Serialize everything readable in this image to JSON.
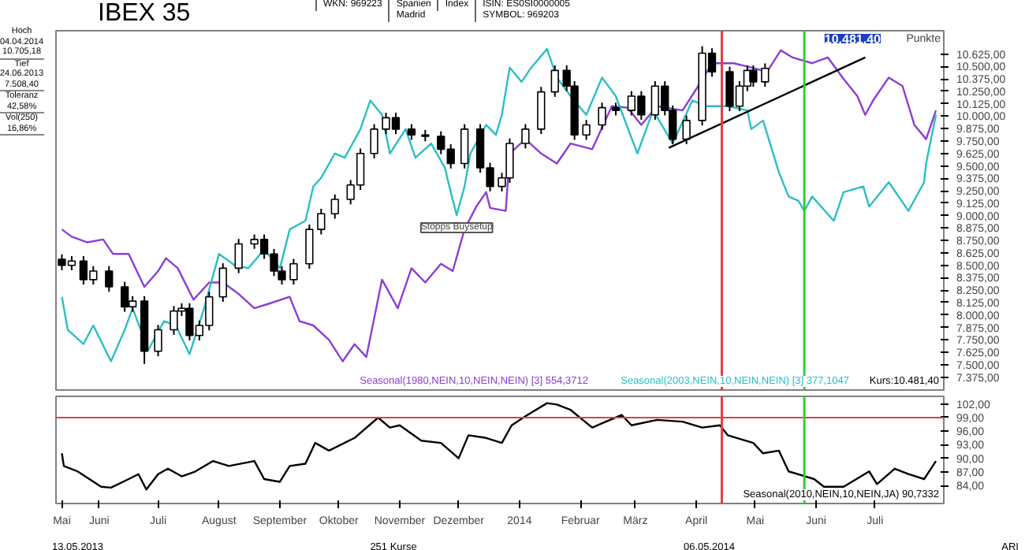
{
  "chart_data": [
    {
      "type": "candlestick",
      "title": "IBEX 35",
      "ylabel": "Punkte",
      "annotations": [
        "WKN: 969223",
        "Spanien\nMadrid",
        "Index",
        "ISIN: ES0SI0000005\nSYMBOL: 969203",
        "Hoch\n04.04.2014\n10.705,18",
        "Tief\n24.06.2013\n7.508,40",
        "Toleranz\n42,58%",
        "Vol(250)\n16,86%",
        {
          "text": "Stopps Buysetup",
          "x": "2013-11-30",
          "y": 9005
        },
        "10.481,40"
      ],
      "xlim": [
        "2013-05-10",
        "2014-08-05"
      ],
      "ylim": [
        7245,
        10860
      ],
      "yticks": [
        {
          "value": 7375,
          "label": "7.375,00"
        },
        {
          "value": 7500,
          "label": "7.500,00"
        },
        {
          "value": 7625,
          "label": "7.625,00"
        },
        {
          "value": 7750,
          "label": "7.750,00"
        },
        {
          "value": 7875,
          "label": "7.875,00"
        },
        {
          "value": 8000,
          "label": "8.000,00"
        },
        {
          "value": 8125,
          "label": "8.125,00"
        },
        {
          "value": 8250,
          "label": "8.250,00"
        },
        {
          "value": 8375,
          "label": "8.375,00"
        },
        {
          "value": 8500,
          "label": "8.500,00"
        },
        {
          "value": 8625,
          "label": "8.625,00"
        },
        {
          "value": 8750,
          "label": "8.750,00"
        },
        {
          "value": 8875,
          "label": "8.875,00"
        },
        {
          "value": 9000,
          "label": "9.000,00"
        },
        {
          "value": 9125,
          "label": "9.125,00"
        },
        {
          "value": 9250,
          "label": "9.250,00"
        },
        {
          "value": 9375,
          "label": "9.375,00"
        },
        {
          "value": 9500,
          "label": "9.500,00"
        },
        {
          "value": 9625,
          "label": "9.625,00"
        },
        {
          "value": 9750,
          "label": "9.750,00"
        },
        {
          "value": 9875,
          "label": "9.875,00"
        },
        {
          "value": 10000,
          "label": "10.000,00"
        },
        {
          "value": 10125,
          "label": "10.125,00"
        },
        {
          "value": 10250,
          "label": "10.250,00"
        },
        {
          "value": 10375,
          "label": "10.375,00"
        },
        {
          "value": 10500,
          "label": "10.500,00"
        },
        {
          "value": 10625,
          "label": "10.625,00"
        }
      ],
      "tick_labels": "y",
      "ref_lines": [
        {
          "axis": "x",
          "value": "2014-04-14",
          "color": "#e04040"
        },
        {
          "axis": "x",
          "value": "2014-05-26",
          "color": "#33cc33"
        }
      ],
      "series": [
        {
          "type": "line",
          "name": "Seasonal(1980,NEIN,10,NEIN,NEIN) [3] 554,3712",
          "color": "#8a3fd6",
          "x": [
            "2013-05-13",
            "2013-05-18",
            "2013-05-26",
            "2013-06-03",
            "2013-06-08",
            "2013-06-16",
            "2013-06-24",
            "2013-07-01",
            "2013-07-05",
            "2013-07-11",
            "2013-07-19",
            "2013-07-27",
            "2013-08-03",
            "2013-08-11",
            "2013-08-19",
            "2013-08-26",
            "2013-09-06",
            "2013-09-11",
            "2013-09-18",
            "2013-09-26",
            "2013-10-03",
            "2013-10-09",
            "2013-10-15",
            "2013-10-23",
            "2013-10-31",
            "2013-11-07",
            "2013-11-14",
            "2013-11-22",
            "2013-11-28",
            "2013-12-04",
            "2013-12-10",
            "2013-12-15",
            "2013-12-17",
            "2013-12-25",
            "2013-12-27",
            "2014-01-04",
            "2014-01-12",
            "2014-01-20",
            "2014-01-27",
            "2014-02-07",
            "2014-02-17",
            "2014-02-25",
            "2014-03-04",
            "2014-03-12",
            "2014-03-25",
            "2014-04-02",
            "2014-04-09",
            "2014-04-20",
            "2014-04-29",
            "2014-05-07",
            "2014-05-14",
            "2014-05-20",
            "2014-05-30",
            "2014-06-07",
            "2014-06-15",
            "2014-06-22",
            "2014-06-26",
            "2014-06-30",
            "2014-07-08",
            "2014-07-15",
            "2014-07-21",
            "2014-07-27",
            "2014-08-01"
          ],
          "values": [
            8861,
            8788,
            8731,
            8760,
            8615,
            8615,
            8284,
            8442,
            8572,
            8471,
            8154,
            8327,
            8327,
            8212,
            8068,
            8111,
            8183,
            7938,
            7895,
            7750,
            7534,
            7707,
            7577,
            8356,
            8068,
            8471,
            8327,
            8515,
            8442,
            8861,
            9091,
            9236,
            9077,
            9048,
            9625,
            9769,
            9625,
            9524,
            9726,
            9668,
            10101,
            10086,
            9913,
            10101,
            10058,
            10303,
            10533,
            10533,
            10490,
            10447,
            10663,
            10591,
            10533,
            10591,
            10375,
            10202,
            10014,
            10158,
            10389,
            10303,
            9913,
            9769,
            10058
          ]
        },
        {
          "type": "line",
          "name": "Seasonal(2003,NEIN,10,NEIN,NEIN) [3] 377,1047",
          "color": "#2bbfc4",
          "x": [
            "2013-05-13",
            "2013-05-16",
            "2013-05-24",
            "2013-05-29",
            "2013-06-07",
            "2013-06-14",
            "2013-06-18",
            "2013-06-26",
            "2013-07-04",
            "2013-07-10",
            "2013-07-17",
            "2013-07-24",
            "2013-08-01",
            "2013-08-09",
            "2013-08-16",
            "2013-08-24",
            "2013-09-01",
            "2013-09-06",
            "2013-09-14",
            "2013-09-18",
            "2013-09-22",
            "2013-09-29",
            "2013-10-04",
            "2013-10-12",
            "2013-10-17",
            "2013-10-23",
            "2013-10-27",
            "2013-11-04",
            "2013-11-09",
            "2013-11-17",
            "2013-11-24",
            "2013-11-27",
            "2013-11-30",
            "2013-12-04",
            "2013-12-07",
            "2013-12-15",
            "2013-12-20",
            "2013-12-23",
            "2013-12-27",
            "2014-01-02",
            "2014-01-07",
            "2014-01-15",
            "2014-01-20",
            "2014-01-27",
            "2014-02-04",
            "2014-02-12",
            "2014-02-19",
            "2014-03-02",
            "2014-03-10",
            "2014-03-20",
            "2014-03-30",
            "2014-04-06",
            "2014-04-17",
            "2014-04-27",
            "2014-04-29",
            "2014-05-05",
            "2014-05-13",
            "2014-05-18",
            "2014-05-23",
            "2014-05-26",
            "2014-05-30",
            "2014-06-10",
            "2014-06-15",
            "2014-06-25",
            "2014-06-28",
            "2014-07-08",
            "2014-07-18",
            "2014-07-26",
            "2014-07-27",
            "2014-08-01"
          ],
          "values": [
            8183,
            7851,
            7707,
            7895,
            7534,
            7851,
            8068,
            7649,
            7938,
            7895,
            7606,
            8040,
            8615,
            8500,
            8471,
            8659,
            8471,
            8861,
            8947,
            9293,
            9380,
            9625,
            9582,
            9870,
            10158,
            10014,
            9625,
            9870,
            9582,
            9726,
            9481,
            9236,
            9005,
            9293,
            9625,
            9913,
            9812,
            10014,
            10490,
            10346,
            10490,
            10677,
            10389,
            10202,
            10014,
            10389,
            10202,
            9625,
            10058,
            9726,
            10158,
            10101,
            10101,
            10058,
            9870,
            9957,
            9438,
            9192,
            9149,
            9048,
            9192,
            8947,
            9236,
            9293,
            9091,
            9336,
            9048,
            9336,
            9524,
            10014
          ]
        },
        {
          "name": "Kurs:10.481,40",
          "color": "#000000",
          "x": [
            "2013-05-13",
            "2013-05-18",
            "2013-05-24",
            "2013-05-29",
            "2013-06-06",
            "2013-06-14",
            "2013-06-18",
            "2013-06-24",
            "2013-07-01",
            "2013-07-09",
            "2013-07-13",
            "2013-07-17",
            "2013-07-22",
            "2013-07-27",
            "2013-08-03",
            "2013-08-11",
            "2013-08-19",
            "2013-08-24",
            "2013-08-29",
            "2013-09-02",
            "2013-09-08",
            "2013-09-16",
            "2013-09-22",
            "2013-09-29",
            "2013-10-07",
            "2013-10-12",
            "2013-10-19",
            "2013-10-25",
            "2013-10-30",
            "2013-11-07",
            "2013-11-14",
            "2013-11-22",
            "2013-11-27",
            "2013-12-04",
            "2013-12-12",
            "2013-12-17",
            "2013-12-23",
            "2013-12-27",
            "2014-01-04",
            "2014-01-12",
            "2014-01-19",
            "2014-01-25",
            "2014-01-29",
            "2014-02-04",
            "2014-02-12",
            "2014-02-19",
            "2014-02-27",
            "2014-03-04",
            "2014-03-11",
            "2014-03-16",
            "2014-03-20",
            "2014-03-27",
            "2014-04-04",
            "2014-04-09",
            "2014-04-18",
            "2014-04-23",
            "2014-04-27",
            "2014-04-30",
            "2014-05-06"
          ],
          "ohlc": [
            [
              8560,
              8610,
              8450,
              8500
            ],
            [
              8500,
              8593,
              8450,
              8543
            ],
            [
              8543,
              8593,
              8306,
              8356
            ],
            [
              8356,
              8492,
              8306,
              8442
            ],
            [
              8442,
              8492,
              8234,
              8284
            ],
            [
              8284,
              8334,
              8032,
              8082
            ],
            [
              8082,
              8190,
              8032,
              8140
            ],
            [
              8140,
              8190,
              7508,
              7635
            ],
            [
              7635,
              7901,
              7585,
              7851
            ],
            [
              7851,
              8090,
              7801,
              8040
            ],
            [
              8040,
              8118,
              7990,
              8068
            ],
            [
              8068,
              8118,
              7744,
              7794
            ],
            [
              7794,
              7945,
              7744,
              7895
            ],
            [
              7895,
              8233,
              7845,
              8183
            ],
            [
              8183,
              8521,
              8133,
              8471
            ],
            [
              8471,
              8766,
              8421,
              8716
            ],
            [
              8716,
              8810,
              8666,
              8760
            ],
            [
              8760,
              8810,
              8565,
              8615
            ],
            [
              8615,
              8665,
              8392,
              8442
            ],
            [
              8442,
              8492,
              8306,
              8356
            ],
            [
              8356,
              8565,
              8306,
              8515
            ],
            [
              8515,
              8911,
              8465,
              8861
            ],
            [
              8861,
              9069,
              8811,
              9019
            ],
            [
              9019,
              9213,
              8969,
              9163
            ],
            [
              9163,
              9358,
              9113,
              9308
            ],
            [
              9308,
              9675,
              9258,
              9625
            ],
            [
              9625,
              9920,
              9575,
              9870
            ],
            [
              9870,
              10035,
              9820,
              9985
            ],
            [
              9985,
              10035,
              9820,
              9870
            ],
            [
              9870,
              9920,
              9762,
              9812
            ],
            [
              9812,
              9862,
              9748,
              9798
            ],
            [
              9798,
              9848,
              9618,
              9668
            ],
            [
              9668,
              9718,
              9474,
              9524
            ],
            [
              9524,
              9920,
              9474,
              9870
            ],
            [
              9870,
              9920,
              9431,
              9481
            ],
            [
              9481,
              9531,
              9243,
              9293
            ],
            [
              9293,
              9430,
              9243,
              9380
            ],
            [
              9380,
              9776,
              9330,
              9726
            ],
            [
              9726,
              9920,
              9676,
              9870
            ],
            [
              9870,
              10295,
              9820,
              10245
            ],
            [
              10245,
              10511,
              10195,
              10461
            ],
            [
              10461,
              10511,
              10253,
              10303
            ],
            [
              10303,
              10353,
              9762,
              9812
            ],
            [
              9812,
              9963,
              9762,
              9913
            ],
            [
              9913,
              10136,
              9863,
              10086
            ],
            [
              10086,
              10136,
              10008,
              10058
            ],
            [
              10058,
              10252,
              10008,
              10202
            ],
            [
              10202,
              10252,
              9964,
              10014
            ],
            [
              10014,
              10353,
              9964,
              10303
            ],
            [
              10303,
              10353,
              10008,
              10058
            ],
            [
              10058,
              10108,
              9719,
              9769
            ],
            [
              9769,
              10007,
              9719,
              9957
            ],
            [
              9957,
              10705,
              9907,
              10634
            ],
            [
              10634,
              10684,
              10397,
              10447
            ],
            [
              10447,
              10497,
              10051,
              10101
            ],
            [
              10101,
              10353,
              10051,
              10303
            ],
            [
              10303,
              10511,
              10253,
              10461
            ],
            [
              10461,
              10511,
              10296,
              10346
            ],
            [
              10346,
              10531,
              10296,
              10481.4
            ]
          ]
        },
        {
          "type": "line",
          "color": "#000000",
          "x": [
            "2014-03-18",
            "2014-06-26"
          ],
          "values": [
            9682,
            10591
          ]
        }
      ]
    },
    {
      "type": "line",
      "annotations": [
        "13.05.2013",
        "251 Kurse",
        "06.05.2014",
        "ARI"
      ],
      "xlim": [
        "2013-05-10",
        "2014-08-05"
      ],
      "ylim": [
        80,
        103.7
      ],
      "xticks": [
        {
          "value": "2013-05-13",
          "label": "Mai"
        },
        {
          "value": "2013-06-01",
          "label": "Juni"
        },
        {
          "value": "2013-07-01",
          "label": "Juli"
        },
        {
          "value": "2013-08-01",
          "label": "August"
        },
        {
          "value": "2013-09-01",
          "label": "September"
        },
        {
          "value": "2013-10-01",
          "label": "Oktober"
        },
        {
          "value": "2013-11-01",
          "label": "November"
        },
        {
          "value": "2013-12-01",
          "label": "Dezember"
        },
        {
          "value": "2014-01-01",
          "label": "2014"
        },
        {
          "value": "2014-02-01",
          "label": "Februar"
        },
        {
          "value": "2014-03-01",
          "label": "März"
        },
        {
          "value": "2014-04-01",
          "label": "April"
        },
        {
          "value": "2014-05-01",
          "label": "Mai"
        },
        {
          "value": "2014-06-01",
          "label": "Juni"
        },
        {
          "value": "2014-07-01",
          "label": "Juli"
        }
      ],
      "yticks": [
        {
          "value": 84,
          "label": "84,00"
        },
        {
          "value": 87,
          "label": "87,00"
        },
        {
          "value": 90,
          "label": "90,00"
        },
        {
          "value": 93,
          "label": "93,00"
        },
        {
          "value": 96,
          "label": "96,00"
        },
        {
          "value": 99,
          "label": "99,00"
        },
        {
          "value": 102,
          "label": "102,00"
        }
      ],
      "ref_lines": [
        {
          "axis": "y",
          "value": 99,
          "color": "#e04040"
        },
        {
          "axis": "x",
          "value": "2014-04-14",
          "color": "#e04040"
        },
        {
          "axis": "x",
          "value": "2014-05-26",
          "color": "#33cc33"
        }
      ],
      "series": [
        {
          "name": "Seasonal(2010,NEIN,10,NEIN,JA) 90,7332",
          "color": "#000000",
          "x": [
            "2013-05-13",
            "2013-05-14",
            "2013-05-21",
            "2013-06-02",
            "2013-06-07",
            "2013-06-16",
            "2013-06-21",
            "2013-06-25",
            "2013-07-01",
            "2013-07-06",
            "2013-07-13",
            "2013-07-20",
            "2013-07-29",
            "2013-08-06",
            "2013-08-19",
            "2013-08-24",
            "2013-09-01",
            "2013-09-06",
            "2013-09-14",
            "2013-09-19",
            "2013-09-26",
            "2013-10-09",
            "2013-10-21",
            "2013-10-27",
            "2013-11-01",
            "2013-11-12",
            "2013-11-22",
            "2013-12-01",
            "2013-12-06",
            "2013-12-15",
            "2013-12-23",
            "2013-12-28",
            "2014-01-04",
            "2014-01-15",
            "2014-01-20",
            "2014-01-27",
            "2014-02-07",
            "2014-02-22",
            "2014-02-27",
            "2014-03-12",
            "2014-03-25",
            "2014-04-04",
            "2014-04-13",
            "2014-04-17",
            "2014-04-30",
            "2014-05-05",
            "2014-05-13",
            "2014-05-18",
            "2014-05-31",
            "2014-06-05",
            "2014-06-15",
            "2014-06-28",
            "2014-07-02",
            "2014-07-11",
            "2014-07-18",
            "2014-07-26",
            "2014-08-01"
          ],
          "values": [
            91.1,
            88.3,
            87.1,
            83.7,
            83.5,
            85.4,
            86.5,
            83.1,
            86.5,
            87.7,
            86.0,
            87.1,
            89.4,
            88.3,
            89.4,
            85.4,
            84.8,
            88.3,
            88.8,
            93.4,
            91.7,
            94.5,
            99.0,
            96.8,
            97.3,
            93.9,
            93.4,
            90.0,
            95.1,
            94.5,
            93.4,
            97.3,
            99.3,
            102.2,
            101.9,
            100.7,
            96.8,
            99.6,
            97.3,
            98.5,
            98.1,
            96.8,
            97.3,
            95.1,
            93.4,
            91.1,
            91.7,
            87.1,
            85.4,
            83.7,
            83.7,
            87.1,
            84.3,
            87.7,
            86.5,
            85.4,
            89.4
          ]
        }
      ]
    }
  ]
}
